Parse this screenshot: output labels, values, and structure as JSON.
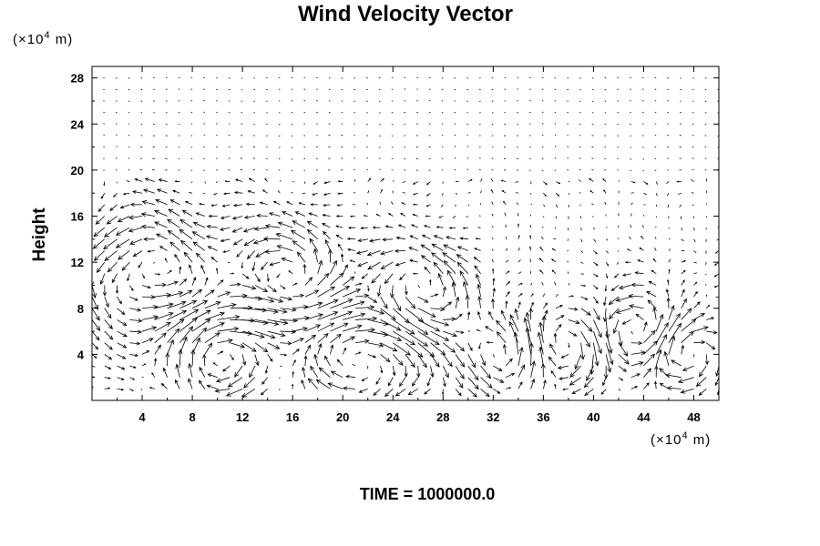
{
  "chart_data": {
    "type": "quiver",
    "title": "Wind Velocity Vector",
    "ylabel": "Height",
    "xlabel": "",
    "y_unit": {
      "prefix": "(×10",
      "exponent": "4",
      "suffix": " m)"
    },
    "x_unit": {
      "prefix": "(×10",
      "exponent": "4",
      "suffix": " m)"
    },
    "xlim": [
      0,
      50
    ],
    "ylim": [
      0,
      29
    ],
    "xticks": [
      4,
      8,
      12,
      16,
      20,
      24,
      28,
      32,
      36,
      40,
      44,
      48
    ],
    "yticks": [
      4,
      8,
      12,
      16,
      20,
      24,
      28
    ],
    "grid": false,
    "footer": "TIME = 1000000.0"
  }
}
